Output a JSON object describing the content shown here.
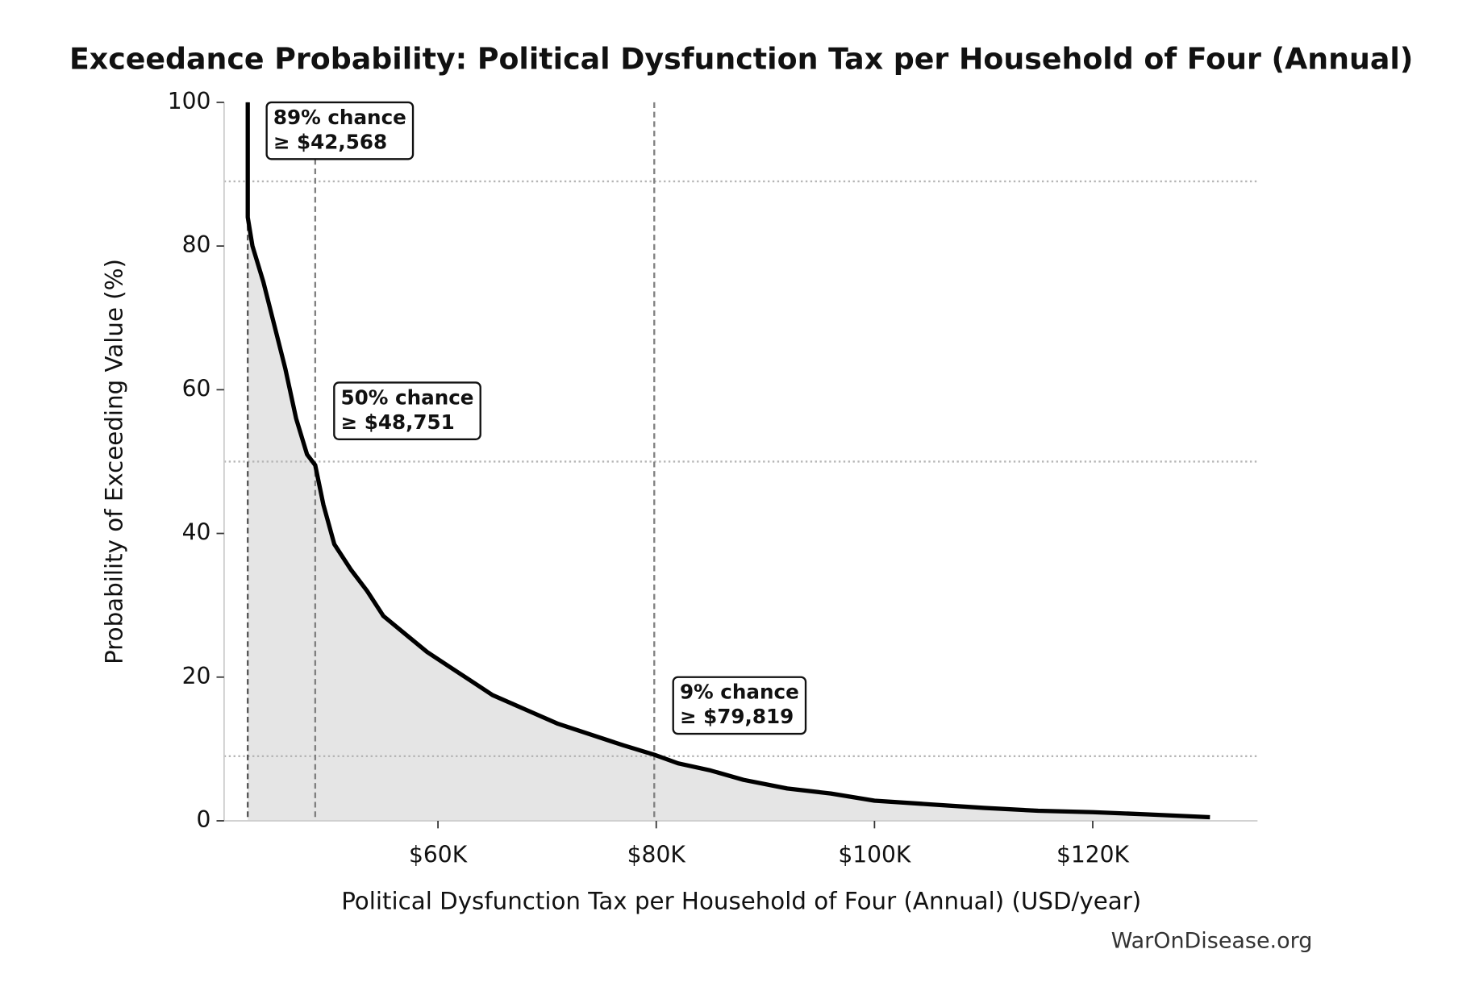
{
  "chart_data": {
    "type": "line",
    "title": "Exceedance Probability: Political Dysfunction Tax per Household of Four (Annual)",
    "x_label": "Political Dysfunction Tax per Household of Four (Annual) (USD/year)",
    "y_label": "Probability of Exceeding Value (%)",
    "source": "WarOnDisease.org",
    "x": [
      42568,
      42568,
      43000,
      44000,
      45000,
      46000,
      47000,
      48000,
      48751,
      49500,
      50500,
      52000,
      53500,
      55000,
      57000,
      59000,
      61000,
      63000,
      65000,
      68000,
      71000,
      74000,
      77000,
      79819,
      82000,
      85000,
      88000,
      92000,
      96000,
      100000,
      105000,
      110000,
      115000,
      120000,
      125000,
      130740
    ],
    "values": [
      100,
      84,
      80,
      75,
      69,
      63,
      56,
      51,
      49.5,
      44,
      38.5,
      35,
      32,
      28.5,
      26,
      23.5,
      21.5,
      19.5,
      17.5,
      15.5,
      13.5,
      12,
      10.5,
      9.2,
      8,
      7,
      5.7,
      4.5,
      3.8,
      2.8,
      2.3,
      1.8,
      1.4,
      1.2,
      0.9,
      0.5
    ],
    "color": "#000000",
    "fill_color": "#e5e5e5",
    "xlim": [
      40400,
      135100
    ],
    "ylim": [
      0,
      100
    ],
    "xticks": [
      {
        "value": 60000,
        "label": "$60K"
      },
      {
        "value": 80000,
        "label": "$80K"
      },
      {
        "value": 100000,
        "label": "$100K"
      },
      {
        "value": 120000,
        "label": "$120K"
      }
    ],
    "yticks": [
      0,
      20,
      40,
      60,
      80,
      100
    ],
    "reference_lines_x": [
      42568,
      48751,
      79819
    ],
    "reference_lines_y": [
      89,
      50,
      9
    ],
    "annotations": [
      {
        "x": 42568,
        "y": 89,
        "lines": [
          "89% chance",
          "≥ $42,568"
        ]
      },
      {
        "x": 48751,
        "y": 50,
        "lines": [
          "50% chance",
          "≥ $48,751"
        ]
      },
      {
        "x": 79819,
        "y": 9,
        "lines": [
          "9% chance",
          "≥ $79,819"
        ]
      }
    ]
  }
}
